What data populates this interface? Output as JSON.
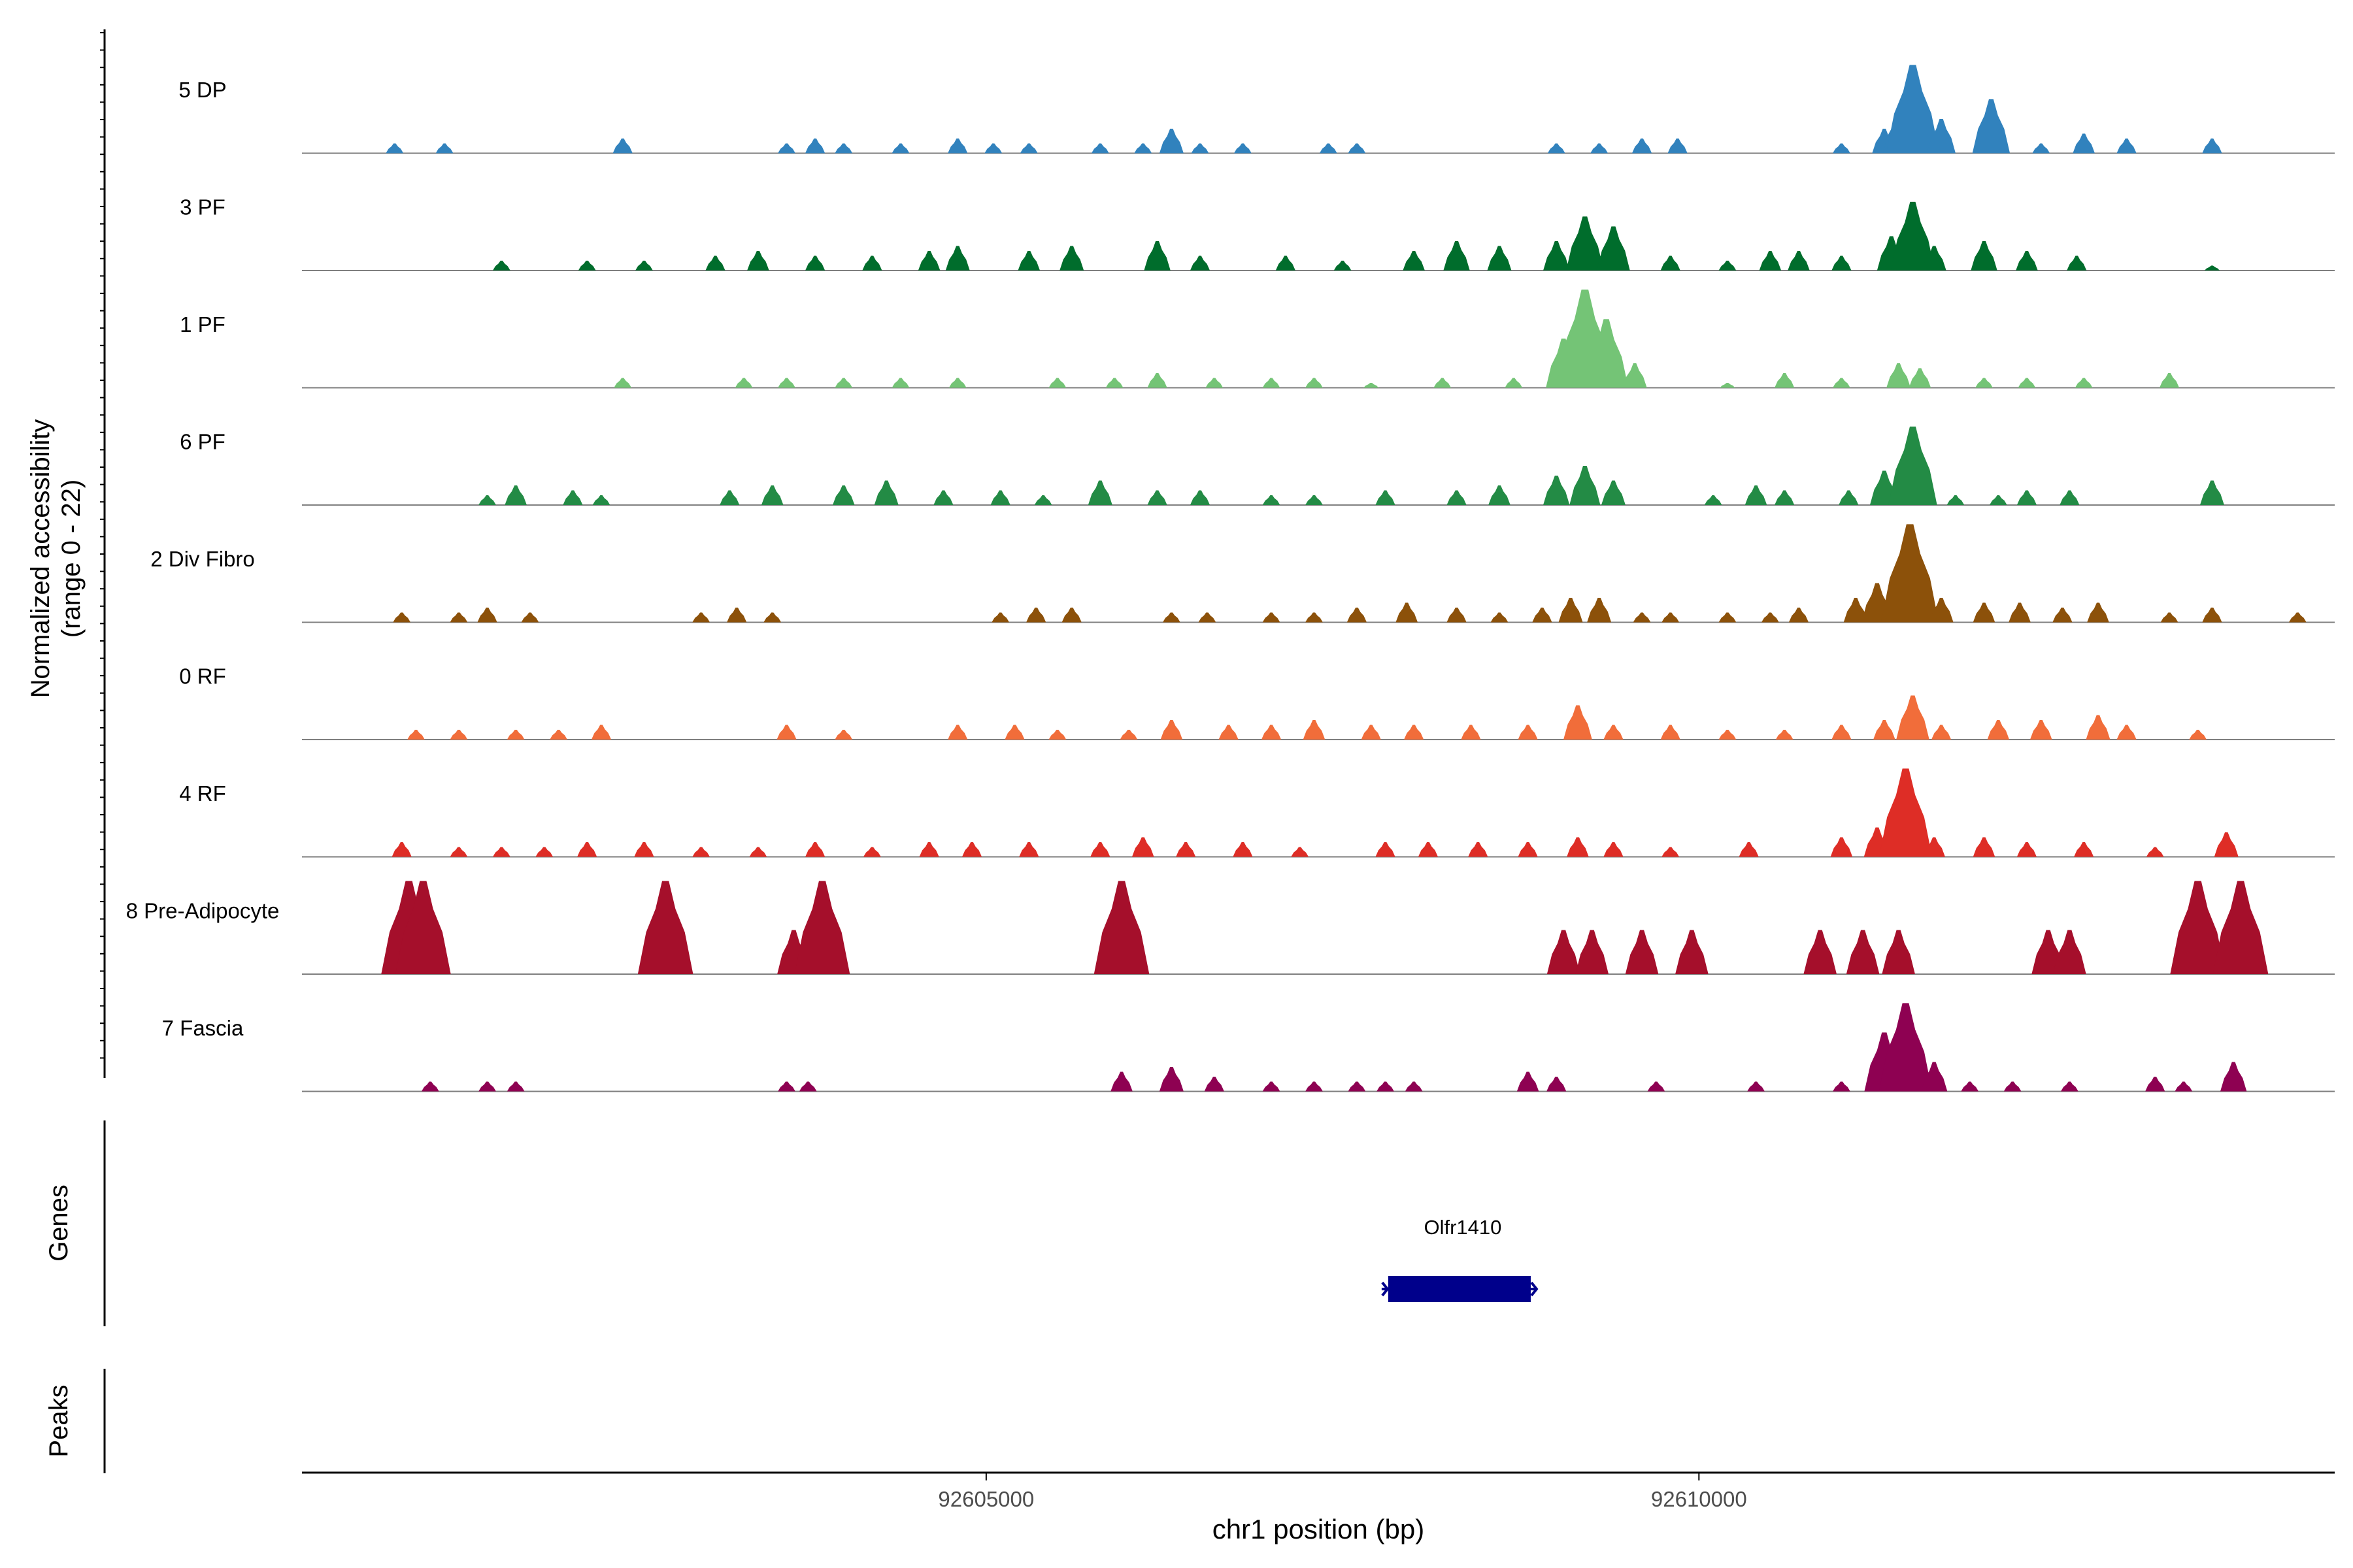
{
  "chart_data": {
    "type": "area",
    "title": "",
    "ylabel_line1": "Normalized accessibility",
    "ylabel_line2": "(range 0 - 22)",
    "xlabel": "chr1 position (bp)",
    "xlim": [
      92600200,
      92614460
    ],
    "ylim": [
      0,
      22
    ],
    "x_ticks": [
      {
        "value": 92605000,
        "label": "92605000"
      },
      {
        "value": 92610000,
        "label": "92610000"
      }
    ],
    "genes_label": "Genes",
    "peaks_label": "Peaks",
    "gene": {
      "name": "Olfr1410",
      "start": 92607820,
      "end": 92608820,
      "strand": "+"
    },
    "tracks": [
      {
        "name": "5 DP",
        "color": "#3182bd",
        "peaks": [
          [
            92600850,
            2
          ],
          [
            92601200,
            2
          ],
          [
            92602450,
            3
          ],
          [
            92603600,
            2
          ],
          [
            92603800,
            3
          ],
          [
            92604000,
            2
          ],
          [
            92604400,
            2
          ],
          [
            92604800,
            3
          ],
          [
            92605050,
            2
          ],
          [
            92605300,
            2
          ],
          [
            92605800,
            2
          ],
          [
            92606100,
            2
          ],
          [
            92606300,
            5
          ],
          [
            92606500,
            2
          ],
          [
            92606800,
            2
          ],
          [
            92607400,
            2
          ],
          [
            92607600,
            2
          ],
          [
            92609000,
            2
          ],
          [
            92609300,
            2
          ],
          [
            92609600,
            3
          ],
          [
            92609850,
            3
          ],
          [
            92611000,
            2
          ],
          [
            92611300,
            5
          ],
          [
            92611400,
            8
          ],
          [
            92611500,
            18
          ],
          [
            92611700,
            7
          ],
          [
            92612050,
            11
          ],
          [
            92612400,
            2
          ],
          [
            92612700,
            4
          ],
          [
            92613000,
            3
          ],
          [
            92613600,
            3
          ]
        ]
      },
      {
        "name": "3 PF",
        "color": "#006d2c",
        "peaks": [
          [
            92601600,
            2
          ],
          [
            92602200,
            2
          ],
          [
            92602600,
            2
          ],
          [
            92603100,
            3
          ],
          [
            92603400,
            4
          ],
          [
            92603800,
            3
          ],
          [
            92604200,
            3
          ],
          [
            92604600,
            4
          ],
          [
            92604800,
            5
          ],
          [
            92605300,
            4
          ],
          [
            92605600,
            5
          ],
          [
            92606200,
            6
          ],
          [
            92606500,
            3
          ],
          [
            92607100,
            3
          ],
          [
            92607500,
            2
          ],
          [
            92608000,
            4
          ],
          [
            92608300,
            6
          ],
          [
            92608600,
            5
          ],
          [
            92609000,
            6
          ],
          [
            92609200,
            11
          ],
          [
            92609400,
            9
          ],
          [
            92609800,
            3
          ],
          [
            92610200,
            2
          ],
          [
            92610500,
            4
          ],
          [
            92610700,
            4
          ],
          [
            92611000,
            3
          ],
          [
            92611350,
            7
          ],
          [
            92611500,
            14
          ],
          [
            92611650,
            5
          ],
          [
            92612000,
            6
          ],
          [
            92612300,
            4
          ],
          [
            92612650,
            3
          ],
          [
            92613600,
            1
          ]
        ]
      },
      {
        "name": "1 PF",
        "color": "#74c476",
        "peaks": [
          [
            92602450,
            2
          ],
          [
            92603300,
            2
          ],
          [
            92603600,
            2
          ],
          [
            92604000,
            2
          ],
          [
            92604400,
            2
          ],
          [
            92604800,
            2
          ],
          [
            92605500,
            2
          ],
          [
            92605900,
            2
          ],
          [
            92606200,
            3
          ],
          [
            92606600,
            2
          ],
          [
            92607000,
            2
          ],
          [
            92607300,
            2
          ],
          [
            92607700,
            1
          ],
          [
            92608200,
            2
          ],
          [
            92608700,
            2
          ],
          [
            92609050,
            10
          ],
          [
            92609200,
            20
          ],
          [
            92609350,
            14
          ],
          [
            92609550,
            5
          ],
          [
            92610200,
            1
          ],
          [
            92610600,
            3
          ],
          [
            92611000,
            2
          ],
          [
            92611400,
            5
          ],
          [
            92611550,
            4
          ],
          [
            92612000,
            2
          ],
          [
            92612300,
            2
          ],
          [
            92612700,
            2
          ],
          [
            92613300,
            3
          ]
        ]
      },
      {
        "name": "6 PF",
        "color": "#238b45",
        "peaks": [
          [
            92601500,
            2
          ],
          [
            92601700,
            4
          ],
          [
            92602100,
            3
          ],
          [
            92602300,
            2
          ],
          [
            92603200,
            3
          ],
          [
            92603500,
            4
          ],
          [
            92604000,
            4
          ],
          [
            92604300,
            5
          ],
          [
            92604700,
            3
          ],
          [
            92605100,
            3
          ],
          [
            92605400,
            2
          ],
          [
            92605800,
            5
          ],
          [
            92606200,
            3
          ],
          [
            92606500,
            3
          ],
          [
            92607000,
            2
          ],
          [
            92607300,
            2
          ],
          [
            92607800,
            3
          ],
          [
            92608300,
            3
          ],
          [
            92608600,
            4
          ],
          [
            92609000,
            6
          ],
          [
            92609200,
            8
          ],
          [
            92609400,
            5
          ],
          [
            92610100,
            2
          ],
          [
            92610400,
            4
          ],
          [
            92610600,
            3
          ],
          [
            92611050,
            3
          ],
          [
            92611300,
            7
          ],
          [
            92611500,
            16
          ],
          [
            92611800,
            2
          ],
          [
            92612100,
            2
          ],
          [
            92612300,
            3
          ],
          [
            92612600,
            3
          ],
          [
            92613600,
            5
          ]
        ]
      },
      {
        "name": "2 Div Fibro",
        "color": "#8c510a",
        "peaks": [
          [
            92600900,
            2
          ],
          [
            92601300,
            2
          ],
          [
            92601500,
            3
          ],
          [
            92601800,
            2
          ],
          [
            92603000,
            2
          ],
          [
            92603250,
            3
          ],
          [
            92603500,
            2
          ],
          [
            92605100,
            2
          ],
          [
            92605350,
            3
          ],
          [
            92605600,
            3
          ],
          [
            92606300,
            2
          ],
          [
            92606550,
            2
          ],
          [
            92607000,
            2
          ],
          [
            92607300,
            2
          ],
          [
            92607600,
            3
          ],
          [
            92607950,
            4
          ],
          [
            92608300,
            3
          ],
          [
            92608600,
            2
          ],
          [
            92608900,
            3
          ],
          [
            92609100,
            5
          ],
          [
            92609300,
            5
          ],
          [
            92609600,
            2
          ],
          [
            92609800,
            2
          ],
          [
            92610200,
            2
          ],
          [
            92610500,
            2
          ],
          [
            92610700,
            3
          ],
          [
            92611100,
            5
          ],
          [
            92611250,
            8
          ],
          [
            92611480,
            20
          ],
          [
            92611700,
            5
          ],
          [
            92612000,
            4
          ],
          [
            92612250,
            4
          ],
          [
            92612550,
            3
          ],
          [
            92612800,
            4
          ],
          [
            92613300,
            2
          ],
          [
            92613600,
            3
          ],
          [
            92614200,
            2
          ]
        ]
      },
      {
        "name": "0 RF",
        "color": "#f16d3a",
        "peaks": [
          [
            92601000,
            2
          ],
          [
            92601300,
            2
          ],
          [
            92601700,
            2
          ],
          [
            92602000,
            2
          ],
          [
            92602300,
            3
          ],
          [
            92603600,
            3
          ],
          [
            92604000,
            2
          ],
          [
            92604800,
            3
          ],
          [
            92605200,
            3
          ],
          [
            92605500,
            2
          ],
          [
            92606000,
            2
          ],
          [
            92606300,
            4
          ],
          [
            92606700,
            3
          ],
          [
            92607000,
            3
          ],
          [
            92607300,
            4
          ],
          [
            92607700,
            3
          ],
          [
            92608000,
            3
          ],
          [
            92608400,
            3
          ],
          [
            92608800,
            3
          ],
          [
            92609150,
            7
          ],
          [
            92609400,
            3
          ],
          [
            92609800,
            3
          ],
          [
            92610200,
            2
          ],
          [
            92610600,
            2
          ],
          [
            92611000,
            3
          ],
          [
            92611300,
            4
          ],
          [
            92611500,
            9
          ],
          [
            92611700,
            3
          ],
          [
            92612100,
            4
          ],
          [
            92612400,
            4
          ],
          [
            92612800,
            5
          ],
          [
            92613000,
            3
          ],
          [
            92613500,
            2
          ]
        ]
      },
      {
        "name": "4 RF",
        "color": "#de2d26",
        "peaks": [
          [
            92600900,
            3
          ],
          [
            92601300,
            2
          ],
          [
            92601600,
            2
          ],
          [
            92601900,
            2
          ],
          [
            92602200,
            3
          ],
          [
            92602600,
            3
          ],
          [
            92603000,
            2
          ],
          [
            92603400,
            2
          ],
          [
            92603800,
            3
          ],
          [
            92604200,
            2
          ],
          [
            92604600,
            3
          ],
          [
            92604900,
            3
          ],
          [
            92605300,
            3
          ],
          [
            92605800,
            3
          ],
          [
            92606100,
            4
          ],
          [
            92606400,
            3
          ],
          [
            92606800,
            3
          ],
          [
            92607200,
            2
          ],
          [
            92607800,
            3
          ],
          [
            92608100,
            3
          ],
          [
            92608450,
            3
          ],
          [
            92608800,
            3
          ],
          [
            92609150,
            4
          ],
          [
            92609400,
            3
          ],
          [
            92609800,
            2
          ],
          [
            92610350,
            3
          ],
          [
            92611000,
            4
          ],
          [
            92611250,
            6
          ],
          [
            92611450,
            18
          ],
          [
            92611650,
            4
          ],
          [
            92612000,
            4
          ],
          [
            92612300,
            3
          ],
          [
            92612700,
            3
          ],
          [
            92613200,
            2
          ],
          [
            92613700,
            5
          ]
        ]
      },
      {
        "name": "8 Pre-Adipocyte",
        "color": "#a50f2b",
        "peaks": [
          [
            92600950,
            19
          ],
          [
            92601050,
            19
          ],
          [
            92602750,
            19
          ],
          [
            92603650,
            9
          ],
          [
            92603850,
            19
          ],
          [
            92605950,
            19
          ],
          [
            92609050,
            9
          ],
          [
            92609250,
            9
          ],
          [
            92609600,
            9
          ],
          [
            92609950,
            9
          ],
          [
            92610850,
            9
          ],
          [
            92611150,
            9
          ],
          [
            92611400,
            9
          ],
          [
            92612450,
            9
          ],
          [
            92612600,
            9
          ],
          [
            92613500,
            19
          ],
          [
            92613800,
            19
          ]
        ]
      },
      {
        "name": "7 Fascia",
        "color": "#8e0152",
        "peaks": [
          [
            92601100,
            2
          ],
          [
            92601500,
            2
          ],
          [
            92601700,
            2
          ],
          [
            92603600,
            2
          ],
          [
            92603750,
            2
          ],
          [
            92605950,
            4
          ],
          [
            92606300,
            5
          ],
          [
            92606600,
            3
          ],
          [
            92607000,
            2
          ],
          [
            92607300,
            2
          ],
          [
            92607600,
            2
          ],
          [
            92607800,
            2
          ],
          [
            92608000,
            2
          ],
          [
            92608800,
            4
          ],
          [
            92609000,
            3
          ],
          [
            92609700,
            2
          ],
          [
            92610400,
            2
          ],
          [
            92611000,
            2
          ],
          [
            92611300,
            12
          ],
          [
            92611450,
            18
          ],
          [
            92611650,
            6
          ],
          [
            92611900,
            2
          ],
          [
            92612200,
            2
          ],
          [
            92612600,
            2
          ],
          [
            92613200,
            3
          ],
          [
            92613400,
            2
          ],
          [
            92613750,
            6
          ]
        ]
      }
    ]
  }
}
